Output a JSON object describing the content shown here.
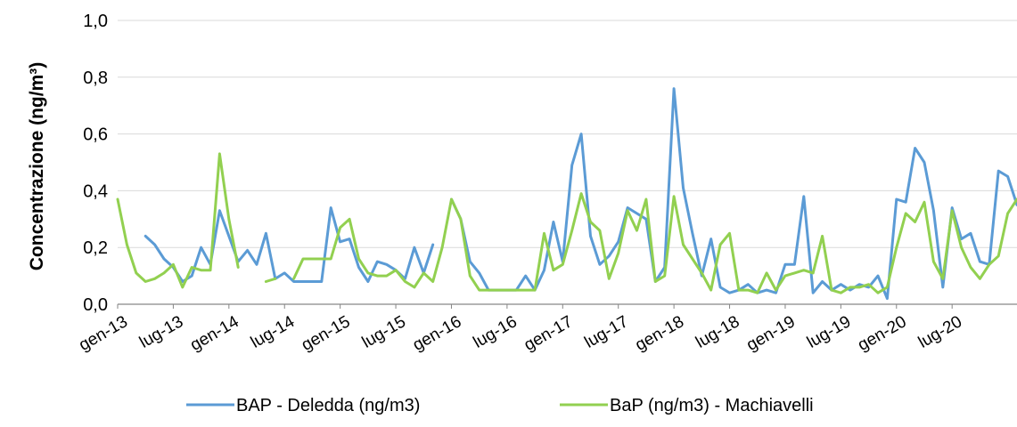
{
  "chart_data": {
    "type": "line",
    "title": "",
    "xlabel": "",
    "ylabel": "Concentrazione (ng/m³)",
    "ylim": [
      0,
      1.0
    ],
    "yticks": [
      "0,0",
      "0,2",
      "0,4",
      "0,6",
      "0,8",
      "1,0"
    ],
    "xticks": [
      "gen-13",
      "lug-13",
      "gen-14",
      "lug-14",
      "gen-15",
      "lug-15",
      "gen-16",
      "lug-16",
      "gen-17",
      "lug-17",
      "gen-18",
      "lug-18",
      "gen-19",
      "lug-19",
      "gen-20",
      "lug-20"
    ],
    "grid": "horizontal",
    "legend_position": "bottom",
    "x_start": "gen-13",
    "x_step": "1 month",
    "series": [
      {
        "name": "BAP - Deledda (ng/m3)",
        "color": "#5b9bd5",
        "values": [
          null,
          null,
          null,
          0.24,
          0.21,
          0.16,
          0.13,
          0.08,
          0.1,
          0.2,
          0.14,
          0.33,
          0.24,
          0.15,
          0.19,
          0.14,
          0.25,
          0.09,
          0.11,
          0.08,
          0.08,
          0.08,
          0.08,
          0.34,
          0.22,
          0.23,
          0.13,
          0.08,
          0.15,
          0.14,
          0.12,
          0.09,
          0.2,
          0.11,
          0.21,
          null,
          0.37,
          0.3,
          0.15,
          0.11,
          0.05,
          0.05,
          0.05,
          0.05,
          0.1,
          0.05,
          0.12,
          0.29,
          0.15,
          0.49,
          0.6,
          0.24,
          0.14,
          0.17,
          0.22,
          0.34,
          0.32,
          0.3,
          0.08,
          0.13,
          0.76,
          0.41,
          0.25,
          0.1,
          0.23,
          0.06,
          0.04,
          0.05,
          0.07,
          0.04,
          0.05,
          0.04,
          0.14,
          0.14,
          0.38,
          0.04,
          0.08,
          0.05,
          0.07,
          0.05,
          0.07,
          0.06,
          0.1,
          0.02,
          0.37,
          0.36,
          0.55,
          0.5,
          0.33,
          0.06,
          0.34,
          0.23,
          0.25,
          0.15,
          0.14,
          0.47,
          0.45,
          0.35
        ]
      },
      {
        "name": "BaP (ng/m3) - Machiavelli",
        "color": "#92d050",
        "values": [
          0.37,
          0.21,
          0.11,
          0.08,
          0.09,
          0.11,
          0.14,
          0.06,
          0.13,
          0.12,
          0.12,
          0.53,
          0.3,
          0.13,
          null,
          null,
          0.08,
          0.09,
          null,
          0.09,
          0.16,
          0.16,
          0.16,
          0.16,
          0.27,
          0.3,
          0.16,
          0.11,
          0.1,
          0.1,
          0.12,
          0.08,
          0.06,
          0.11,
          0.08,
          0.2,
          0.37,
          0.3,
          0.1,
          0.05,
          0.05,
          0.05,
          0.05,
          0.05,
          0.05,
          0.05,
          0.25,
          0.12,
          0.14,
          0.26,
          0.39,
          0.29,
          0.26,
          0.09,
          0.18,
          0.33,
          0.26,
          0.37,
          0.08,
          0.1,
          0.38,
          0.21,
          0.16,
          0.11,
          0.05,
          0.21,
          0.25,
          0.05,
          0.05,
          0.04,
          0.11,
          0.05,
          0.1,
          0.11,
          0.12,
          0.11,
          0.24,
          0.05,
          0.04,
          0.06,
          0.06,
          0.07,
          0.04,
          0.06,
          0.2,
          0.32,
          0.29,
          0.36,
          0.15,
          0.09,
          0.33,
          0.2,
          0.13,
          0.09,
          0.14,
          0.17,
          0.32,
          0.37
        ]
      }
    ]
  }
}
